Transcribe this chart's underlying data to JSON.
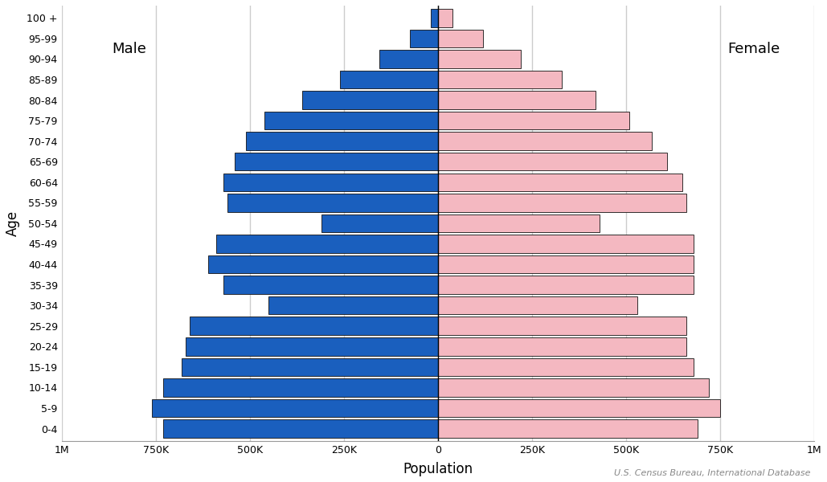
{
  "age_groups": [
    "0-4",
    "5-9",
    "10-14",
    "15-19",
    "20-24",
    "25-29",
    "30-34",
    "35-39",
    "40-44",
    "45-49",
    "50-54",
    "55-59",
    "60-64",
    "65-69",
    "70-74",
    "75-79",
    "80-84",
    "85-89",
    "90-94",
    "95-99",
    "100 +"
  ],
  "male": [
    730000,
    760000,
    730000,
    680000,
    670000,
    660000,
    450000,
    570000,
    610000,
    590000,
    310000,
    560000,
    570000,
    540000,
    510000,
    460000,
    360000,
    260000,
    155000,
    75000,
    18000
  ],
  "female": [
    690000,
    750000,
    720000,
    680000,
    660000,
    660000,
    530000,
    680000,
    680000,
    680000,
    430000,
    660000,
    650000,
    610000,
    570000,
    510000,
    420000,
    330000,
    220000,
    120000,
    40000
  ],
  "male_color": "#1a5fbe",
  "female_color": "#f4b8c1",
  "edge_color": "#111111",
  "xlim": [
    -1000000,
    1000000
  ],
  "xlabel": "Population",
  "ylabel": "Age",
  "male_label": "Male",
  "female_label": "Female",
  "source_text": "U.S. Census Bureau, International Database",
  "background_color": "#ffffff",
  "grid_color": "#cccccc",
  "bar_height": 0.88,
  "tick_values": [
    -1000000,
    -750000,
    -500000,
    -250000,
    0,
    250000,
    500000,
    750000,
    1000000
  ],
  "tick_labels": [
    "1M",
    "750K",
    "500K",
    "250K",
    "0",
    "250K",
    "500K",
    "750K",
    "1M"
  ]
}
